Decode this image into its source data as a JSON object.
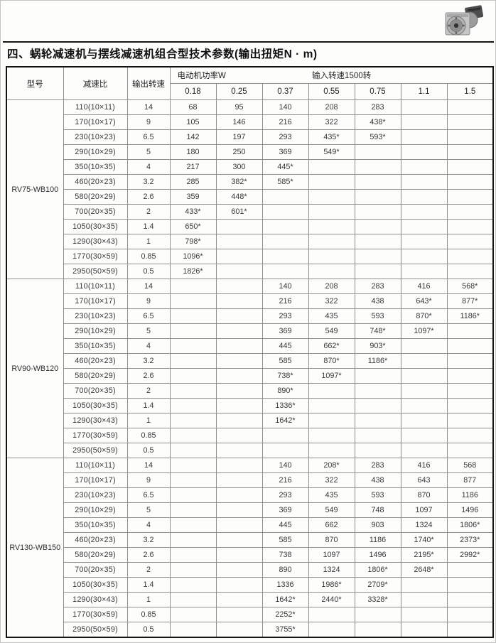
{
  "page": {
    "title": "四、蜗轮减速机与摆线减速机组合型技术参数(输出扭矩N · m)"
  },
  "colors": {
    "outer_border": "#141414",
    "grid_border": "#8f8f8f",
    "text": "#383838"
  },
  "table": {
    "headers": {
      "model": "型号",
      "ratio": "减速比",
      "output_speed": "输出转速",
      "motor_power": "电动机功率W",
      "input_speed": "输入转速1500转",
      "power_columns": [
        "0.18",
        "0.25",
        "0.37",
        "0.55",
        "0.75",
        "1.1",
        "1.5"
      ]
    },
    "sections": [
      {
        "model": "RV75-WB100",
        "rows": [
          {
            "ratio": "110(10×11)",
            "speed": "14",
            "values": [
              "68",
              "95",
              "140",
              "208",
              "283",
              "",
              ""
            ]
          },
          {
            "ratio": "170(10×17)",
            "speed": "9",
            "values": [
              "105",
              "146",
              "216",
              "322",
              "438*",
              "",
              ""
            ]
          },
          {
            "ratio": "230(10×23)",
            "speed": "6.5",
            "values": [
              "142",
              "197",
              "293",
              "435*",
              "593*",
              "",
              ""
            ]
          },
          {
            "ratio": "290(10×29)",
            "speed": "5",
            "values": [
              "180",
              "250",
              "369",
              "549*",
              "",
              "",
              ""
            ]
          },
          {
            "ratio": "350(10×35)",
            "speed": "4",
            "values": [
              "217",
              "300",
              "445*",
              "",
              "",
              "",
              ""
            ]
          },
          {
            "ratio": "460(20×23)",
            "speed": "3.2",
            "values": [
              "285",
              "382*",
              "585*",
              "",
              "",
              "",
              ""
            ]
          },
          {
            "ratio": "580(20×29)",
            "speed": "2.6",
            "values": [
              "359",
              "448*",
              "",
              "",
              "",
              "",
              ""
            ]
          },
          {
            "ratio": "700(20×35)",
            "speed": "2",
            "values": [
              "433*",
              "601*",
              "",
              "",
              "",
              "",
              ""
            ]
          },
          {
            "ratio": "1050(30×35)",
            "speed": "1.4",
            "values": [
              "650*",
              "",
              "",
              "",
              "",
              "",
              ""
            ]
          },
          {
            "ratio": "1290(30×43)",
            "speed": "1",
            "values": [
              "798*",
              "",
              "",
              "",
              "",
              "",
              ""
            ]
          },
          {
            "ratio": "1770(30×59)",
            "speed": "0.85",
            "values": [
              "1096*",
              "",
              "",
              "",
              "",
              "",
              ""
            ]
          },
          {
            "ratio": "2950(50×59)",
            "speed": "0.5",
            "values": [
              "1826*",
              "",
              "",
              "",
              "",
              "",
              ""
            ]
          }
        ]
      },
      {
        "model": "RV90-WB120",
        "rows": [
          {
            "ratio": "110(10×11)",
            "speed": "14",
            "values": [
              "",
              "",
              "140",
              "208",
              "283",
              "416",
              "568*"
            ]
          },
          {
            "ratio": "170(10×17)",
            "speed": "9",
            "values": [
              "",
              "",
              "216",
              "322",
              "438",
              "643*",
              "877*"
            ]
          },
          {
            "ratio": "230(10×23)",
            "speed": "6.5",
            "values": [
              "",
              "",
              "293",
              "435",
              "593",
              "870*",
              "1186*"
            ]
          },
          {
            "ratio": "290(10×29)",
            "speed": "5",
            "values": [
              "",
              "",
              "369",
              "549",
              "748*",
              "1097*",
              ""
            ]
          },
          {
            "ratio": "350(10×35)",
            "speed": "4",
            "values": [
              "",
              "",
              "445",
              "662*",
              "903*",
              "",
              ""
            ]
          },
          {
            "ratio": "460(20×23)",
            "speed": "3.2",
            "values": [
              "",
              "",
              "585",
              "870*",
              "1186*",
              "",
              ""
            ]
          },
          {
            "ratio": "580(20×29)",
            "speed": "2.6",
            "values": [
              "",
              "",
              "738*",
              "1097*",
              "",
              "",
              ""
            ]
          },
          {
            "ratio": "700(20×35)",
            "speed": "2",
            "values": [
              "",
              "",
              "890*",
              "",
              "",
              "",
              ""
            ]
          },
          {
            "ratio": "1050(30×35)",
            "speed": "1.4",
            "values": [
              "",
              "",
              "1336*",
              "",
              "",
              "",
              ""
            ]
          },
          {
            "ratio": "1290(30×43)",
            "speed": "1",
            "values": [
              "",
              "",
              "1642*",
              "",
              "",
              "",
              ""
            ]
          },
          {
            "ratio": "1770(30×59)",
            "speed": "0.85",
            "values": [
              "",
              "",
              "",
              "",
              "",
              "",
              ""
            ]
          },
          {
            "ratio": "2950(50×59)",
            "speed": "0.5",
            "values": [
              "",
              "",
              "",
              "",
              "",
              "",
              ""
            ]
          }
        ]
      },
      {
        "model": "RV130-WB150",
        "rows": [
          {
            "ratio": "110(10×11)",
            "speed": "14",
            "values": [
              "",
              "",
              "140",
              "208*",
              "283",
              "416",
              "568"
            ]
          },
          {
            "ratio": "170(10×17)",
            "speed": "9",
            "values": [
              "",
              "",
              "216",
              "322",
              "438",
              "643",
              "877"
            ]
          },
          {
            "ratio": "230(10×23)",
            "speed": "6.5",
            "values": [
              "",
              "",
              "293",
              "435",
              "593",
              "870",
              "1186"
            ]
          },
          {
            "ratio": "290(10×29)",
            "speed": "5",
            "values": [
              "",
              "",
              "369",
              "549",
              "748",
              "1097",
              "1496"
            ]
          },
          {
            "ratio": "350(10×35)",
            "speed": "4",
            "values": [
              "",
              "",
              "445",
              "662",
              "903",
              "1324",
              "1806*"
            ]
          },
          {
            "ratio": "460(20×23)",
            "speed": "3.2",
            "values": [
              "",
              "",
              "585",
              "870",
              "1186",
              "1740*",
              "2373*"
            ]
          },
          {
            "ratio": "580(20×29)",
            "speed": "2.6",
            "values": [
              "",
              "",
              "738",
              "1097",
              "1496",
              "2195*",
              "2992*"
            ]
          },
          {
            "ratio": "700(20×35)",
            "speed": "2",
            "values": [
              "",
              "",
              "890",
              "1324",
              "1806*",
              "2648*",
              ""
            ]
          },
          {
            "ratio": "1050(30×35)",
            "speed": "1.4",
            "values": [
              "",
              "",
              "1336",
              "1986*",
              "2709*",
              "",
              ""
            ]
          },
          {
            "ratio": "1290(30×43)",
            "speed": "1",
            "values": [
              "",
              "",
              "1642*",
              "2440*",
              "3328*",
              "",
              ""
            ]
          },
          {
            "ratio": "1770(30×59)",
            "speed": "0.85",
            "values": [
              "",
              "",
              "2252*",
              "",
              "",
              "",
              ""
            ]
          },
          {
            "ratio": "2950(50×59)",
            "speed": "0.5",
            "values": [
              "",
              "",
              "3755*",
              "",
              "",
              "",
              ""
            ]
          }
        ]
      }
    ]
  }
}
